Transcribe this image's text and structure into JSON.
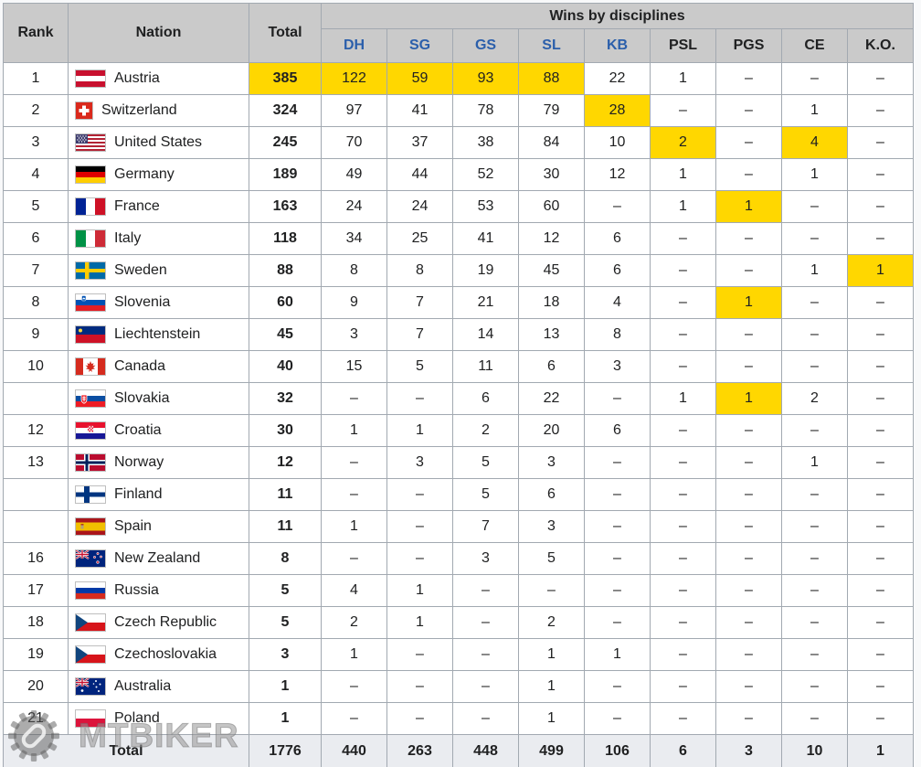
{
  "table": {
    "header": {
      "rank": "Rank",
      "nation": "Nation",
      "total": "Total",
      "group": "Wins by disciplines",
      "disciplines": [
        {
          "label": "DH",
          "link": true
        },
        {
          "label": "SG",
          "link": true
        },
        {
          "label": "GS",
          "link": true
        },
        {
          "label": "SL",
          "link": true
        },
        {
          "label": "KB",
          "link": true
        },
        {
          "label": "PSL",
          "link": false
        },
        {
          "label": "PGS",
          "link": false
        },
        {
          "label": "CE",
          "link": false
        },
        {
          "label": "K.O.",
          "link": false
        }
      ]
    },
    "rows": [
      {
        "rank": "1",
        "nation": "Austria",
        "flag": "at",
        "total": "385",
        "total_hl": true,
        "values": [
          "122",
          "59",
          "93",
          "88",
          "22",
          "1",
          "–",
          "–",
          "–"
        ],
        "hl": [
          0,
          1,
          2,
          3
        ]
      },
      {
        "rank": "2",
        "nation": "Switzerland",
        "flag": "ch",
        "total": "324",
        "total_hl": false,
        "values": [
          "97",
          "41",
          "78",
          "79",
          "28",
          "–",
          "–",
          "1",
          "–"
        ],
        "hl": [
          4
        ]
      },
      {
        "rank": "3",
        "nation": "United States",
        "flag": "us",
        "total": "245",
        "total_hl": false,
        "values": [
          "70",
          "37",
          "38",
          "84",
          "10",
          "2",
          "–",
          "4",
          "–"
        ],
        "hl": [
          5,
          7
        ]
      },
      {
        "rank": "4",
        "nation": "Germany",
        "flag": "de",
        "total": "189",
        "total_hl": false,
        "values": [
          "49",
          "44",
          "52",
          "30",
          "12",
          "1",
          "–",
          "1",
          "–"
        ],
        "hl": []
      },
      {
        "rank": "5",
        "nation": "France",
        "flag": "fr",
        "total": "163",
        "total_hl": false,
        "values": [
          "24",
          "24",
          "53",
          "60",
          "–",
          "1",
          "1",
          "–",
          "–"
        ],
        "hl": [
          6
        ]
      },
      {
        "rank": "6",
        "nation": "Italy",
        "flag": "it",
        "total": "118",
        "total_hl": false,
        "values": [
          "34",
          "25",
          "41",
          "12",
          "6",
          "–",
          "–",
          "–",
          "–"
        ],
        "hl": []
      },
      {
        "rank": "7",
        "nation": "Sweden",
        "flag": "se",
        "total": "88",
        "total_hl": false,
        "values": [
          "8",
          "8",
          "19",
          "45",
          "6",
          "–",
          "–",
          "1",
          "1"
        ],
        "hl": [
          8
        ]
      },
      {
        "rank": "8",
        "nation": "Slovenia",
        "flag": "si",
        "total": "60",
        "total_hl": false,
        "values": [
          "9",
          "7",
          "21",
          "18",
          "4",
          "–",
          "1",
          "–",
          "–"
        ],
        "hl": [
          6
        ]
      },
      {
        "rank": "9",
        "nation": "Liechtenstein",
        "flag": "li",
        "total": "45",
        "total_hl": false,
        "values": [
          "3",
          "7",
          "14",
          "13",
          "8",
          "–",
          "–",
          "–",
          "–"
        ],
        "hl": []
      },
      {
        "rank": "10",
        "nation": "Canada",
        "flag": "ca",
        "total": "40",
        "total_hl": false,
        "values": [
          "15",
          "5",
          "11",
          "6",
          "3",
          "–",
          "–",
          "–",
          "–"
        ],
        "hl": []
      },
      {
        "rank": "",
        "nation": "Slovakia",
        "flag": "sk",
        "total": "32",
        "total_hl": false,
        "values": [
          "–",
          "–",
          "6",
          "22",
          "–",
          "1",
          "1",
          "2",
          "–"
        ],
        "hl": [
          6
        ]
      },
      {
        "rank": "12",
        "nation": "Croatia",
        "flag": "hr",
        "total": "30",
        "total_hl": false,
        "values": [
          "1",
          "1",
          "2",
          "20",
          "6",
          "–",
          "–",
          "–",
          "–"
        ],
        "hl": []
      },
      {
        "rank": "13",
        "nation": "Norway",
        "flag": "no",
        "total": "12",
        "total_hl": false,
        "values": [
          "–",
          "3",
          "5",
          "3",
          "–",
          "–",
          "–",
          "1",
          "–"
        ],
        "hl": []
      },
      {
        "rank": "",
        "nation": "Finland",
        "flag": "fi",
        "total": "11",
        "total_hl": false,
        "values": [
          "–",
          "–",
          "5",
          "6",
          "–",
          "–",
          "–",
          "–",
          "–"
        ],
        "hl": []
      },
      {
        "rank": "",
        "nation": "Spain",
        "flag": "es",
        "total": "11",
        "total_hl": false,
        "values": [
          "1",
          "–",
          "7",
          "3",
          "–",
          "–",
          "–",
          "–",
          "–"
        ],
        "hl": []
      },
      {
        "rank": "16",
        "nation": "New Zealand",
        "flag": "nz",
        "total": "8",
        "total_hl": false,
        "values": [
          "–",
          "–",
          "3",
          "5",
          "–",
          "–",
          "–",
          "–",
          "–"
        ],
        "hl": []
      },
      {
        "rank": "17",
        "nation": "Russia",
        "flag": "ru",
        "total": "5",
        "total_hl": false,
        "values": [
          "4",
          "1",
          "–",
          "–",
          "–",
          "–",
          "–",
          "–",
          "–"
        ],
        "hl": []
      },
      {
        "rank": "18",
        "nation": "Czech Republic",
        "flag": "cz",
        "total": "5",
        "total_hl": false,
        "values": [
          "2",
          "1",
          "–",
          "2",
          "–",
          "–",
          "–",
          "–",
          "–"
        ],
        "hl": []
      },
      {
        "rank": "19",
        "nation": "Czechoslovakia",
        "flag": "cs",
        "total": "3",
        "total_hl": false,
        "values": [
          "1",
          "–",
          "–",
          "1",
          "1",
          "–",
          "–",
          "–",
          "–"
        ],
        "hl": []
      },
      {
        "rank": "20",
        "nation": "Australia",
        "flag": "au",
        "total": "1",
        "total_hl": false,
        "values": [
          "–",
          "–",
          "–",
          "1",
          "–",
          "–",
          "–",
          "–",
          "–"
        ],
        "hl": []
      },
      {
        "rank": "21",
        "nation": "Poland",
        "flag": "pl",
        "total": "1",
        "total_hl": false,
        "values": [
          "–",
          "–",
          "–",
          "1",
          "–",
          "–",
          "–",
          "–",
          "–"
        ],
        "hl": []
      }
    ],
    "total_row": {
      "label": "Total",
      "total": "1776",
      "values": [
        "440",
        "263",
        "448",
        "499",
        "106",
        "6",
        "3",
        "10",
        "1"
      ]
    }
  },
  "watermark": {
    "text": "MTBIKER",
    "icon": "gear-chain-logo"
  },
  "colors": {
    "highlight": "#ffd700",
    "header_bg": "#cacaca",
    "link_blue": "#2b5fab",
    "total_row_bg": "#eaecf0",
    "border": "#a2a9b1",
    "page_bg": "#f8f9fa"
  }
}
